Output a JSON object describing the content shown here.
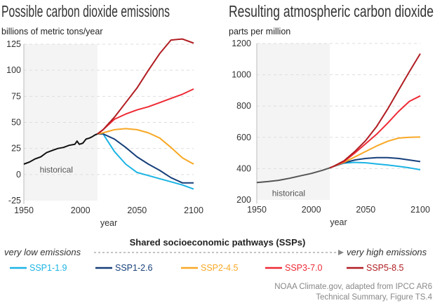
{
  "chart_data": [
    {
      "type": "line",
      "title": "Possible carbon dioxide emissions",
      "ylabel": "billions of metric tons/year",
      "xlabel": "year",
      "xlim": [
        1950,
        2100
      ],
      "ylim": [
        -25,
        125
      ],
      "xticks": [
        1950,
        2000,
        2050,
        2100
      ],
      "yticks": [
        -25,
        0,
        25,
        50,
        75,
        100,
        125
      ],
      "grid": "horizontal dashed",
      "shaded_region": {
        "label": "historical",
        "x": [
          1950,
          2015
        ]
      },
      "historical": {
        "x": [
          1950,
          1955,
          1960,
          1965,
          1970,
          1975,
          1980,
          1985,
          1990,
          1995,
          1997,
          1999,
          2002,
          2005,
          2008,
          2010,
          2013,
          2015
        ],
        "y": [
          10,
          12,
          15,
          17,
          21,
          23,
          25,
          26,
          28,
          29,
          32,
          29,
          30,
          34,
          35,
          36,
          38,
          39
        ]
      },
      "series": [
        {
          "name": "SSP1-1.9",
          "x": [
            2015,
            2020,
            2030,
            2040,
            2050,
            2060,
            2070,
            2080,
            2090,
            2100
          ],
          "y": [
            39,
            39,
            22,
            10,
            2,
            -1,
            -4,
            -7,
            -10,
            -14
          ]
        },
        {
          "name": "SSP1-2.6",
          "x": [
            2015,
            2020,
            2030,
            2040,
            2050,
            2060,
            2070,
            2080,
            2090,
            2100
          ],
          "y": [
            39,
            39,
            34,
            26,
            17,
            10,
            4,
            -3,
            -8,
            -8
          ]
        },
        {
          "name": "SSP2-4.5",
          "x": [
            2015,
            2020,
            2030,
            2040,
            2050,
            2060,
            2070,
            2080,
            2090,
            2100
          ],
          "y": [
            39,
            40,
            43,
            44,
            43,
            40,
            35,
            26,
            16,
            10
          ]
        },
        {
          "name": "SSP3-7.0",
          "x": [
            2015,
            2020,
            2030,
            2040,
            2050,
            2060,
            2070,
            2080,
            2090,
            2100
          ],
          "y": [
            39,
            43,
            53,
            58,
            62,
            65,
            69,
            73,
            77,
            82
          ]
        },
        {
          "name": "SSP5-8.5",
          "x": [
            2015,
            2020,
            2030,
            2040,
            2050,
            2060,
            2070,
            2080,
            2090,
            2100
          ],
          "y": [
            39,
            43,
            55,
            69,
            83,
            100,
            116,
            129,
            130,
            126
          ]
        }
      ]
    },
    {
      "type": "line",
      "title": "Resulting atmospheric carbon dioxide",
      "ylabel": "parts per million",
      "xlabel": "year",
      "xlim": [
        1950,
        2100
      ],
      "ylim": [
        200,
        1200
      ],
      "xticks": [
        1950,
        2000,
        2050,
        2100
      ],
      "yticks": [
        200,
        400,
        600,
        800,
        1000,
        1200
      ],
      "grid": "horizontal dashed",
      "shaded_region": {
        "label": "historical",
        "x": [
          1950,
          2017
        ]
      },
      "historical": {
        "x": [
          1950,
          1960,
          1970,
          1980,
          1990,
          2000,
          2010,
          2017
        ],
        "y": [
          311,
          317,
          325,
          338,
          354,
          369,
          389,
          405
        ]
      },
      "series": [
        {
          "name": "SSP1-1.9",
          "x": [
            2017,
            2020,
            2030,
            2040,
            2050,
            2060,
            2070,
            2080,
            2090,
            2100
          ],
          "y": [
            405,
            413,
            435,
            440,
            437,
            430,
            423,
            415,
            405,
            393
          ]
        },
        {
          "name": "SSP1-2.6",
          "x": [
            2017,
            2020,
            2030,
            2040,
            2050,
            2060,
            2070,
            2080,
            2090,
            2100
          ],
          "y": [
            405,
            413,
            437,
            455,
            465,
            470,
            470,
            465,
            455,
            445
          ]
        },
        {
          "name": "SSP2-4.5",
          "x": [
            2017,
            2020,
            2030,
            2040,
            2050,
            2060,
            2070,
            2080,
            2090,
            2100
          ],
          "y": [
            405,
            413,
            440,
            475,
            510,
            545,
            575,
            595,
            600,
            602
          ]
        },
        {
          "name": "SSP3-7.0",
          "x": [
            2017,
            2020,
            2030,
            2040,
            2050,
            2060,
            2070,
            2080,
            2090,
            2100
          ],
          "y": [
            405,
            413,
            445,
            500,
            560,
            620,
            690,
            765,
            830,
            865
          ]
        },
        {
          "name": "SSP5-8.5",
          "x": [
            2017,
            2020,
            2030,
            2040,
            2050,
            2060,
            2070,
            2080,
            2090,
            2100
          ],
          "y": [
            405,
            413,
            450,
            510,
            580,
            670,
            780,
            900,
            1020,
            1135
          ]
        }
      ]
    }
  ],
  "colors": {
    "historical": "#111111",
    "historical_ppm": "#555555",
    "SSP1-1.9": "#1bb4e4",
    "SSP1-2.6": "#163f7a",
    "SSP2-4.5": "#f8a825",
    "SSP3-7.0": "#ee2a35",
    "SSP5-8.5": "#b01d22",
    "shade": "#f4f4f4"
  },
  "legend": {
    "title": "Shared socioeconomic pathways (SSPs)",
    "low_label": "very low emissions",
    "high_label": "very high emissions",
    "items": [
      "SSP1-1.9",
      "SSP1-2.6",
      "SSP2-4.5",
      "SSP3-7.0",
      "SSP5-8.5"
    ]
  },
  "credit": [
    "NOAA Climate.gov, adapted from IPCC AR6",
    "Technical Summary, Figure TS.4"
  ]
}
